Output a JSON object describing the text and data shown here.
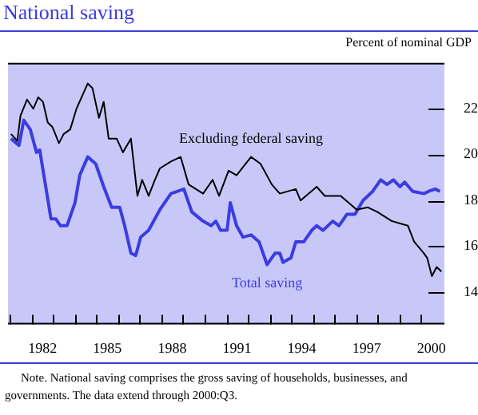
{
  "chart_data": {
    "type": "line",
    "title": "National saving",
    "ylabel": "Percent of nominal GDP",
    "xlim": [
      1980.9,
      2001.1
    ],
    "xticks": [
      {
        "value": 1981,
        "label": null
      },
      {
        "value": 1982,
        "label": null
      },
      {
        "value": 1982.5,
        "label": "1982"
      },
      {
        "value": 1983,
        "label": null
      },
      {
        "value": 1984,
        "label": null
      },
      {
        "value": 1985,
        "label": null
      },
      {
        "value": 1985.5,
        "label": "1985"
      },
      {
        "value": 1986,
        "label": null
      },
      {
        "value": 1987,
        "label": null
      },
      {
        "value": 1988,
        "label": null
      },
      {
        "value": 1988.5,
        "label": "1988"
      },
      {
        "value": 1989,
        "label": null
      },
      {
        "value": 1990,
        "label": null
      },
      {
        "value": 1991,
        "label": null
      },
      {
        "value": 1991.5,
        "label": "1991"
      },
      {
        "value": 1992,
        "label": null
      },
      {
        "value": 1993,
        "label": null
      },
      {
        "value": 1994,
        "label": null
      },
      {
        "value": 1994.5,
        "label": "1994"
      },
      {
        "value": 1995,
        "label": null
      },
      {
        "value": 1996,
        "label": null
      },
      {
        "value": 1997,
        "label": null
      },
      {
        "value": 1997.5,
        "label": "1997"
      },
      {
        "value": 1998,
        "label": null
      },
      {
        "value": 1999,
        "label": null
      },
      {
        "value": 2000,
        "label": null
      },
      {
        "value": 2000.5,
        "label": "2000"
      }
    ],
    "ylim": [
      12.6,
      24
    ],
    "yticks": [
      14,
      16,
      18,
      20,
      22
    ],
    "grid": false,
    "legend": false,
    "marker": "none",
    "line_style": "solid",
    "series": [
      {
        "name": "Excluding federal saving",
        "color": "#000000",
        "x": [
          1981.04,
          1981.33,
          1981.48,
          1981.78,
          1982.07,
          1982.3,
          1982.52,
          1982.74,
          1982.96,
          1983.26,
          1983.48,
          1983.78,
          1984.07,
          1984.59,
          1984.81,
          1985.11,
          1985.33,
          1985.56,
          1985.93,
          1986.22,
          1986.59,
          1986.89,
          1987.11,
          1987.41,
          1987.7,
          1987.93,
          1988.44,
          1988.89,
          1989.26,
          1989.93,
          1990.37,
          1990.67,
          1991.11,
          1991.48,
          1992.15,
          1992.59,
          1993.11,
          1993.48,
          1994.22,
          1994.44,
          1995.19,
          1995.56,
          1996.3,
          1997.04,
          1997.56,
          1998,
          1998.67,
          1999.41,
          1999.7,
          2000.15,
          2000.3,
          2000.52,
          2000.74,
          2000.96
        ],
        "values": [
          20.9,
          20.6,
          21.7,
          22.4,
          22,
          22.5,
          22.3,
          21.4,
          21.2,
          20.5,
          20.9,
          21.1,
          22,
          23.1,
          22.9,
          21.6,
          22.3,
          20.7,
          20.7,
          20.1,
          20.7,
          18.2,
          18.9,
          18.2,
          18.9,
          19.4,
          19.7,
          19.9,
          18.7,
          18.3,
          18.9,
          18.2,
          19.3,
          19.1,
          19.9,
          19.6,
          18.7,
          18.3,
          18.5,
          18,
          18.6,
          18.2,
          18.2,
          17.6,
          17.7,
          17.5,
          17.1,
          16.9,
          16.2,
          15.7,
          15.5,
          14.7,
          15.1,
          14.9
        ]
      },
      {
        "name": "Total saving",
        "color": "#3c3ce0",
        "x": [
          1981.04,
          1981.41,
          1981.63,
          1981.93,
          1982.22,
          1982.37,
          1982.89,
          1983.11,
          1983.33,
          1983.63,
          1984,
          1984.22,
          1984.59,
          1984.96,
          1985.33,
          1985.7,
          1986.07,
          1986.3,
          1986.59,
          1986.81,
          1987.04,
          1987.41,
          1987.93,
          1988.44,
          1989.04,
          1989.41,
          1989.93,
          1990.3,
          1990.52,
          1990.74,
          1991.04,
          1991.19,
          1991.48,
          1991.78,
          1992.15,
          1992.52,
          1992.89,
          1993.26,
          1993.48,
          1993.63,
          1994,
          1994.22,
          1994.59,
          1994.96,
          1995.19,
          1995.48,
          1995.93,
          1996.22,
          1996.59,
          1996.96,
          1997.33,
          1997.78,
          1998.15,
          1998.44,
          1998.74,
          1999.04,
          1999.26,
          1999.63,
          2000.15,
          2000.37,
          2000.67,
          2000.89
        ],
        "values": [
          20.7,
          20.4,
          21.5,
          21.1,
          20.1,
          20.2,
          17.2,
          17.2,
          16.9,
          16.9,
          17.9,
          19.1,
          19.9,
          19.6,
          18.6,
          17.7,
          17.7,
          16.9,
          15.7,
          15.6,
          16.4,
          16.7,
          17.6,
          18.3,
          18.5,
          17.5,
          17.1,
          16.9,
          17.1,
          16.7,
          16.7,
          17.9,
          16.9,
          16.4,
          16.5,
          16.2,
          15.2,
          15.7,
          15.7,
          15.3,
          15.5,
          16.2,
          16.2,
          16.7,
          16.9,
          16.7,
          17.1,
          16.9,
          17.4,
          17.4,
          18,
          18.4,
          18.9,
          18.7,
          18.9,
          18.6,
          18.8,
          18.4,
          18.3,
          18.4,
          18.5,
          18.4
        ]
      }
    ],
    "annotations": [
      "Note. National saving comprises the gross saving of households, businesses, and governments. The data extend through 2000:Q3."
    ]
  }
}
